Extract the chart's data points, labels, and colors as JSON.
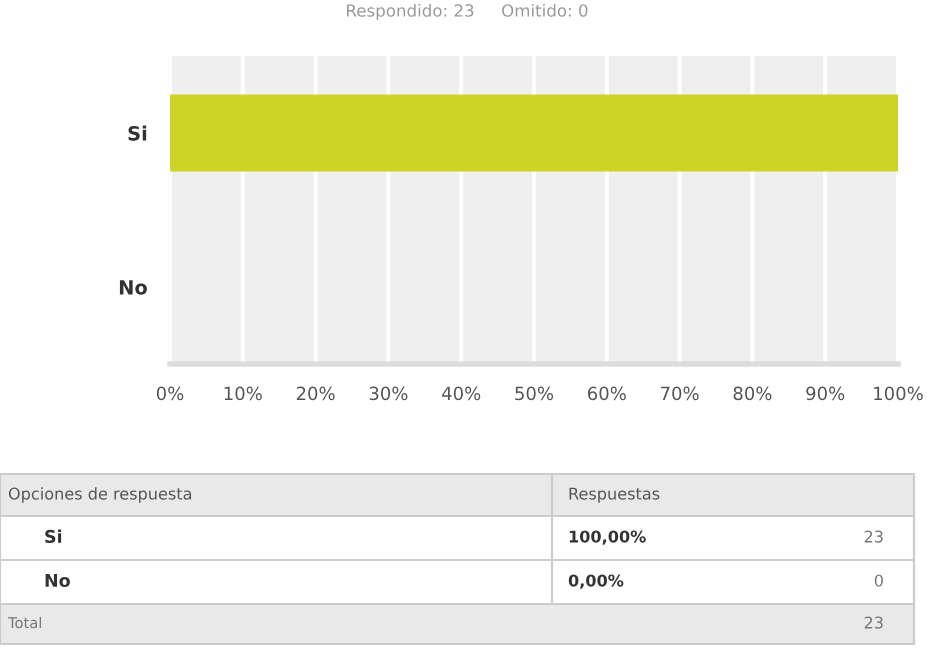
{
  "chart_data": {
    "type": "bar",
    "orientation": "horizontal",
    "subtitle": "Respondido: 23     Omitido: 0",
    "categories": [
      "Si",
      "No"
    ],
    "values": [
      100,
      0
    ],
    "color": "#cdd426",
    "xlim": [
      0,
      100
    ],
    "xticks": [
      {
        "value": 0,
        "label": "0%"
      },
      {
        "value": 10,
        "label": "10%"
      },
      {
        "value": 20,
        "label": "20%"
      },
      {
        "value": 30,
        "label": "30%"
      },
      {
        "value": 40,
        "label": "40%"
      },
      {
        "value": 50,
        "label": "50%"
      },
      {
        "value": 60,
        "label": "60%"
      },
      {
        "value": 70,
        "label": "70%"
      },
      {
        "value": 80,
        "label": "80%"
      },
      {
        "value": 90,
        "label": "90%"
      },
      {
        "value": 100,
        "label": "100%"
      }
    ],
    "grid": "x",
    "annotations": [
      "Opciones de respuesta",
      "Respuestas",
      "100,00%",
      "23",
      "0,00%",
      "0",
      "Total",
      "23"
    ]
  }
}
